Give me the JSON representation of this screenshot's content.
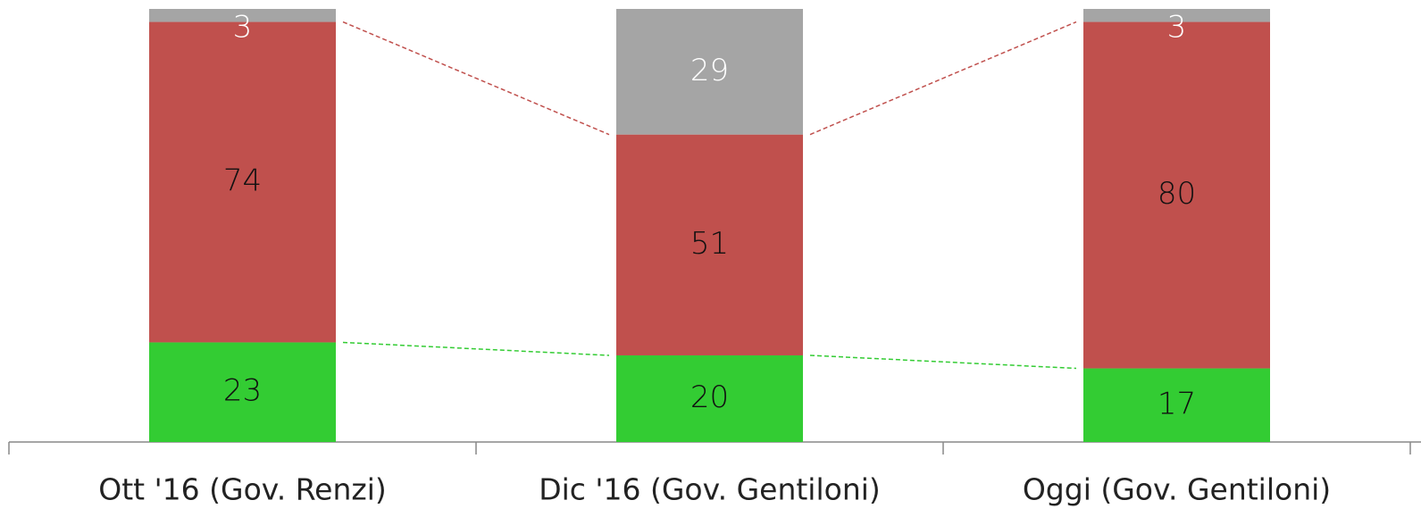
{
  "chart_data": {
    "type": "stacked_bar",
    "categories": [
      "Ott '16 (Gov. Renzi)",
      "Dic '16 (Gov. Gentiloni)",
      "Oggi (Gov. Gentiloni)"
    ],
    "series": [
      {
        "color": "#33cc33",
        "values": [
          23,
          20,
          17
        ]
      },
      {
        "color": "#c0504d",
        "values": [
          74,
          51,
          80
        ]
      },
      {
        "color": "#a5a5a5",
        "values": [
          3,
          29,
          3
        ]
      }
    ],
    "label_colors": [
      "#111111",
      "#111111",
      "#ffffff"
    ],
    "connectors": true
  }
}
